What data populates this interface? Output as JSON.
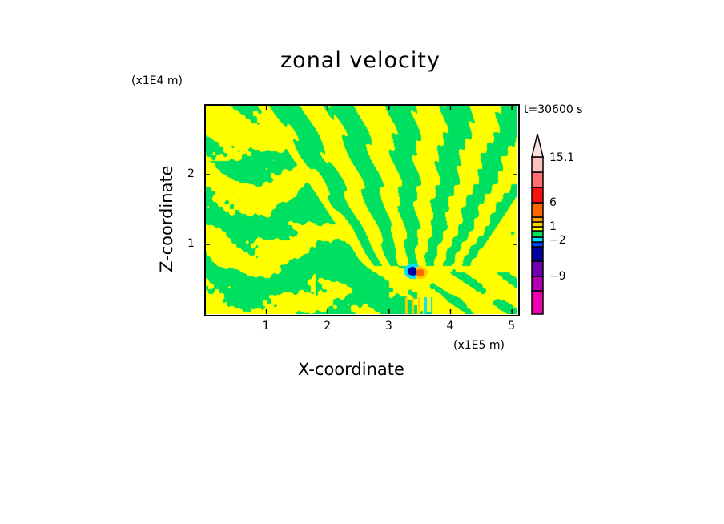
{
  "chart_data": {
    "type": "heatmap",
    "title": "zonal velocity",
    "xlabel": "X-coordinate",
    "ylabel": "Z-coordinate",
    "x_unit": "(x1E5 m)",
    "y_unit": "(x1E4 m)",
    "time_label": "t=30600 s",
    "xlim": [
      0,
      5.09
    ],
    "ylim": [
      0,
      3.0
    ],
    "x_ticks": [
      "1",
      "2",
      "3",
      "4",
      "5"
    ],
    "y_ticks": [
      "1",
      "2"
    ],
    "colorbar": {
      "levels": [
        -15,
        -12,
        -9,
        -6,
        -3,
        -2,
        -1,
        0,
        1,
        2,
        3,
        6,
        9,
        12,
        15.1
      ],
      "colors": [
        "#f000b0",
        "#b000b0",
        "#7000b0",
        "#0000a0",
        "#0040ff",
        "#00e0ff",
        "#00e060",
        "#ffff00",
        "#ffd000",
        "#ffa000",
        "#ff6600",
        "#ff1010",
        "#ff7070",
        "#ffc0c0"
      ],
      "extend_color": "#ffe0e0",
      "labels": [
        {
          "text": "15.1",
          "value": 15.1
        },
        {
          "text": "6",
          "value": 6
        },
        {
          "text": "1",
          "value": 1
        },
        {
          "text": "−2",
          "value": -2
        },
        {
          "text": "−9",
          "value": -9
        }
      ]
    },
    "dominant_values": "field mostly between -1 and 1 (green/yellow), with a V-shaped banded wave pattern centred near x=3.4, and small extrema (blue, orange) near x=3.4, z=0.6"
  }
}
